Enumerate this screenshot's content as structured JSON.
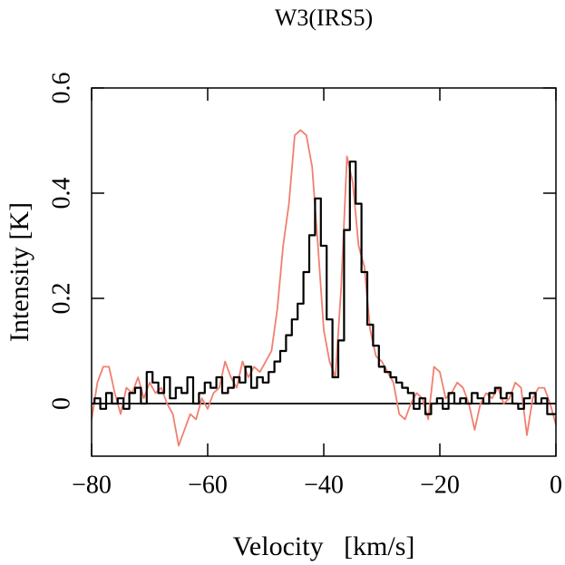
{
  "chart_data": {
    "type": "line",
    "title": "W3(IRS5)",
    "x_label": "Velocity   [km/s]",
    "y_label": "Intensity [K]",
    "xlim": [
      -80,
      0
    ],
    "ylim": [
      -0.1,
      0.6
    ],
    "xticks": [
      {
        "value": -80,
        "label": "−80"
      },
      {
        "value": -60,
        "label": "−60"
      },
      {
        "value": -40,
        "label": "−40"
      },
      {
        "value": -20,
        "label": "−20"
      },
      0
    ],
    "yticks": [
      0,
      0.2,
      0.4,
      0.6
    ],
    "zero_line": true,
    "x": [
      -80,
      -79,
      -78,
      -77,
      -76,
      -75,
      -74,
      -73,
      -72,
      -71,
      -70,
      -69,
      -68,
      -67,
      -66,
      -65,
      -64,
      -63,
      -62,
      -61,
      -60,
      -59,
      -58,
      -57,
      -56,
      -55,
      -54,
      -53,
      -52,
      -51,
      -50,
      -49,
      -48,
      -47,
      -46,
      -45,
      -44,
      -43,
      -42,
      -41,
      -40,
      -39,
      -38,
      -37,
      -36,
      -35,
      -34,
      -33,
      -32,
      -31,
      -30,
      -29,
      -28,
      -27,
      -26,
      -25,
      -24,
      -23,
      -22,
      -21,
      -20,
      -19,
      -18,
      -17,
      -16,
      -15,
      -14,
      -13,
      -12,
      -11,
      -10,
      -9,
      -8,
      -7,
      -6,
      -5,
      -4,
      -3,
      -2,
      -1,
      0
    ],
    "series": [
      {
        "color": "#f08070",
        "drawstyle": "line",
        "values": [
          -0.03,
          0.04,
          0.07,
          0.07,
          0.02,
          -0.02,
          0.03,
          0.02,
          0.05,
          0.01,
          0.04,
          0.02,
          0.03,
          0.0,
          -0.02,
          -0.08,
          -0.05,
          -0.02,
          -0.03,
          0.01,
          -0.01,
          0.02,
          0.03,
          0.08,
          0.05,
          0.03,
          0.08,
          0.05,
          0.07,
          0.06,
          0.08,
          0.1,
          0.18,
          0.3,
          0.38,
          0.51,
          0.52,
          0.51,
          0.45,
          0.3,
          0.14,
          0.08,
          0.05,
          0.22,
          0.47,
          0.42,
          0.3,
          0.26,
          0.14,
          0.09,
          0.08,
          0.06,
          0.04,
          -0.02,
          -0.03,
          0.0,
          0.02,
          0.01,
          -0.03,
          0.07,
          0.06,
          0.01,
          0.02,
          0.04,
          0.03,
          0.0,
          -0.05,
          0.0,
          0.02,
          0.01,
          0.03,
          0.0,
          0.01,
          0.04,
          0.03,
          -0.06,
          0.01,
          0.03,
          0.03,
          0.0,
          -0.04
        ]
      },
      {
        "color": "#000000",
        "drawstyle": "steps",
        "values": [
          0.0,
          0.01,
          -0.01,
          0.02,
          0.0,
          0.01,
          -0.01,
          0.02,
          0.03,
          0.0,
          0.06,
          0.04,
          0.02,
          0.05,
          0.01,
          0.03,
          0.02,
          0.05,
          0.0,
          0.02,
          0.04,
          0.03,
          0.05,
          0.02,
          0.03,
          0.05,
          0.04,
          0.07,
          0.03,
          0.05,
          0.04,
          0.06,
          0.08,
          0.1,
          0.13,
          0.16,
          0.19,
          0.25,
          0.32,
          0.39,
          0.3,
          0.16,
          0.05,
          0.12,
          0.33,
          0.46,
          0.38,
          0.25,
          0.15,
          0.11,
          0.07,
          0.06,
          0.05,
          0.04,
          0.03,
          0.02,
          -0.01,
          0.01,
          -0.02,
          0.0,
          0.01,
          -0.01,
          0.02,
          0.0,
          0.01,
          0.0,
          0.02,
          0.01,
          0.0,
          0.02,
          0.03,
          0.01,
          0.02,
          0.0,
          -0.01,
          0.01,
          0.02,
          0.0,
          0.01,
          -0.02,
          -0.02
        ]
      }
    ]
  }
}
